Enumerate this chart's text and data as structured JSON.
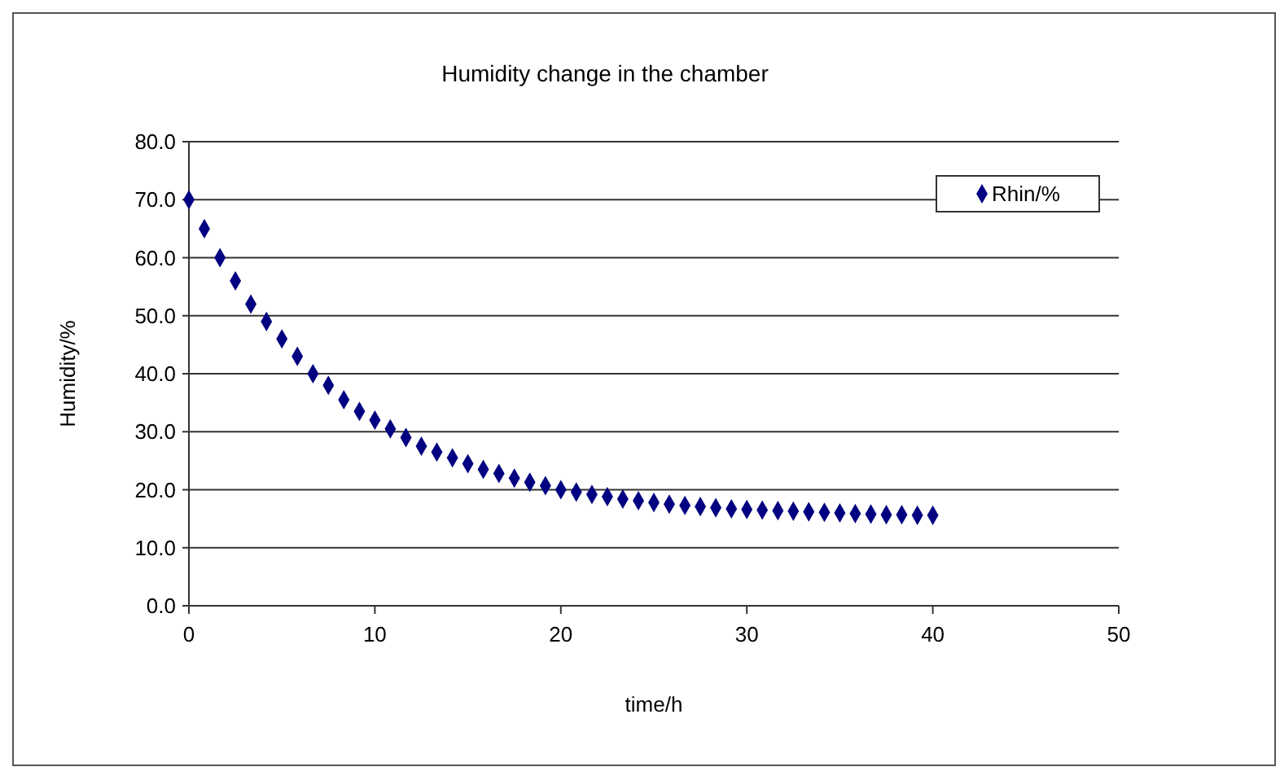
{
  "chart_data": {
    "type": "scatter",
    "title": "Humidity change in the chamber",
    "xlabel": "time/h",
    "ylabel": "Humidity/%",
    "xlim": [
      0,
      50
    ],
    "xticks": [
      0,
      10,
      20,
      30,
      40,
      50
    ],
    "ylim": [
      0,
      80
    ],
    "yticks": [
      {
        "value": 0,
        "label": "0.0"
      },
      {
        "value": 10,
        "label": "10.0"
      },
      {
        "value": 20,
        "label": "20.0"
      },
      {
        "value": 30,
        "label": "30.0"
      },
      {
        "value": 40,
        "label": "40.0"
      },
      {
        "value": 50,
        "label": "50.0"
      },
      {
        "value": 60,
        "label": "60.0"
      },
      {
        "value": 70,
        "label": "70.0"
      },
      {
        "value": 80,
        "label": "80.0"
      }
    ],
    "grid": "y",
    "legend": "top right",
    "marker": "diamond",
    "series": [
      {
        "name": "Rhin/%",
        "color": "#000080",
        "x": [
          0,
          0.83,
          1.67,
          2.5,
          3.33,
          4.17,
          5,
          5.83,
          6.67,
          7.5,
          8.33,
          9.17,
          10,
          10.83,
          11.67,
          12.5,
          13.33,
          14.17,
          15,
          15.83,
          16.67,
          17.5,
          18.33,
          19.17,
          20,
          20.83,
          21.67,
          22.5,
          23.33,
          24.17,
          25,
          25.83,
          26.67,
          27.5,
          28.33,
          29.17,
          30,
          30.83,
          31.67,
          32.5,
          33.33,
          34.17,
          35,
          35.83,
          36.67,
          37.5,
          38.33,
          39.17,
          40
        ],
        "values": [
          70,
          65,
          60,
          56,
          52,
          49,
          46,
          43,
          40,
          38,
          35.5,
          33.5,
          32,
          30.5,
          29,
          27.5,
          26.5,
          25.5,
          24.5,
          23.5,
          22.8,
          22,
          21.3,
          20.7,
          20,
          19.6,
          19.2,
          18.8,
          18.4,
          18.1,
          17.8,
          17.5,
          17.3,
          17.1,
          16.9,
          16.7,
          16.6,
          16.5,
          16.4,
          16.3,
          16.2,
          16.1,
          16,
          15.9,
          15.8,
          15.7,
          15.7,
          15.6,
          15.6
        ]
      }
    ]
  }
}
